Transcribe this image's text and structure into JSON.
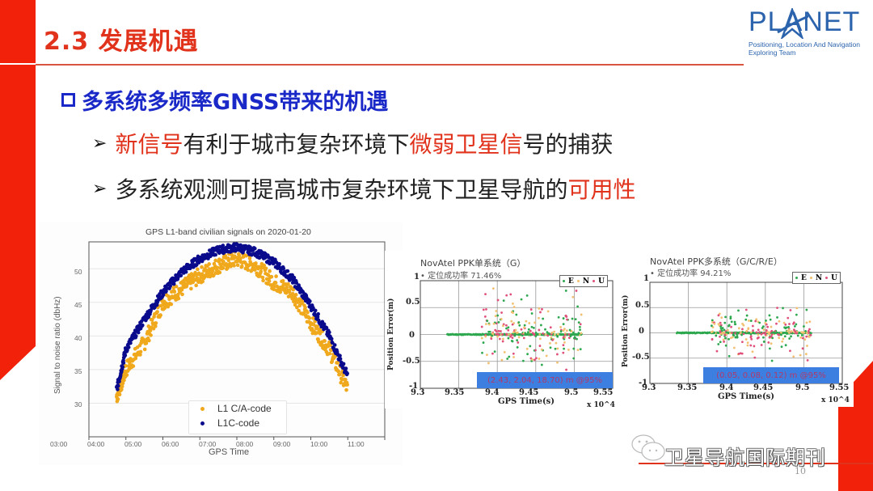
{
  "slide": {
    "title": "2.3 发展机遇",
    "page_number": "10",
    "accent_color": "#e1321c",
    "heading_color": "#1a28c8"
  },
  "logo": {
    "word": "PLANET",
    "subtitle_line1": "Positioning, Location And Navigation",
    "subtitle_line2": "Exploring Team"
  },
  "heading": {
    "text": "多系统多频率GNSS带来的机遇"
  },
  "bullets": [
    {
      "segments": [
        {
          "text": "新信号",
          "highlight": true
        },
        {
          "text": "有利于城市复杂环境下",
          "highlight": false
        },
        {
          "text": "微弱卫星信",
          "highlight": true
        },
        {
          "text": "号的捕获",
          "highlight": false
        }
      ]
    },
    {
      "segments": [
        {
          "text": "多系统观测可提高城市复杂环境下卫星导航的",
          "highlight": false
        },
        {
          "text": "可用性",
          "highlight": true
        }
      ]
    }
  ],
  "footer": {
    "source": "卫星导航国际期刊"
  },
  "chart_data": [
    {
      "type": "scatter",
      "title": "GPS L1-band civilian signals on 2020-01-20",
      "xlabel": "GPS Time",
      "ylabel": "Signal to noise ratio (dbHz)",
      "x_ticks": [
        "03:00",
        "04:00",
        "05:00",
        "06:00",
        "07:00",
        "08:00",
        "09:00",
        "10:00",
        "11:00"
      ],
      "y_ticks": [
        30,
        35,
        40,
        45,
        50
      ],
      "ylim": [
        25,
        54
      ],
      "grid": true,
      "legend_position": "lower center",
      "series": [
        {
          "name": "L1 C/A-code",
          "color": "#f0a81c",
          "x": [
            "03:45",
            "04:00",
            "04:30",
            "05:00",
            "05:30",
            "06:00",
            "06:30",
            "07:00",
            "07:30",
            "08:00",
            "08:30",
            "09:00",
            "09:30",
            "10:00"
          ],
          "values": [
            31,
            35,
            39,
            45,
            47,
            49,
            50.5,
            51.5,
            50.5,
            48,
            46.5,
            42,
            38,
            32
          ]
        },
        {
          "name": "L1C-code",
          "color": "#0a0a8c",
          "x": [
            "03:45",
            "04:00",
            "04:30",
            "05:00",
            "05:30",
            "06:00",
            "06:30",
            "07:00",
            "07:30",
            "08:00",
            "08:30",
            "09:00",
            "09:30",
            "10:00"
          ],
          "values": [
            32,
            38,
            42.5,
            46.5,
            49.5,
            51.5,
            52.8,
            53.2,
            52.5,
            51,
            48.5,
            44.5,
            40,
            34
          ]
        }
      ]
    },
    {
      "type": "scatter",
      "title": "NovAtel PPK单系统（G）",
      "subtitle": "定位成功率 71.46%",
      "xlabel": "GPS Time(s)",
      "ylabel": "Position Error(m)",
      "x_ticks": [
        9.3,
        9.35,
        9.4,
        9.45,
        9.5,
        9.55
      ],
      "x_scale": "x 10^4",
      "y_ticks": [
        -1,
        -0.5,
        0,
        0.5,
        1
      ],
      "ylim": [
        -1,
        1
      ],
      "xlim": [
        9.3,
        9.55
      ],
      "grid": true,
      "legend": [
        "E",
        "N",
        "U"
      ],
      "series_colors": {
        "E": "#2ea84f",
        "N": "#f2c070",
        "U": "#e0507a"
      },
      "annotation": "(2.43, 2.04, 18.70) m @95%"
    },
    {
      "type": "scatter",
      "title": "NovAtel PPK多系统（G/C/R/E）",
      "subtitle": "定位成功率 94.21%",
      "xlabel": "GPS Time(s)",
      "ylabel": "Position Error(m)",
      "x_ticks": [
        9.3,
        9.35,
        9.4,
        9.45,
        9.5,
        9.55
      ],
      "x_scale": "x 10^4",
      "y_ticks": [
        -1,
        -0.5,
        0,
        0.5,
        1
      ],
      "ylim": [
        -1,
        1
      ],
      "xlim": [
        9.3,
        9.55
      ],
      "grid": true,
      "legend": [
        "E",
        "N",
        "U"
      ],
      "series_colors": {
        "E": "#2ea84f",
        "N": "#f2c070",
        "U": "#e0507a"
      },
      "annotation": "(0.05, 0.08, 0.12) m @95%"
    }
  ]
}
